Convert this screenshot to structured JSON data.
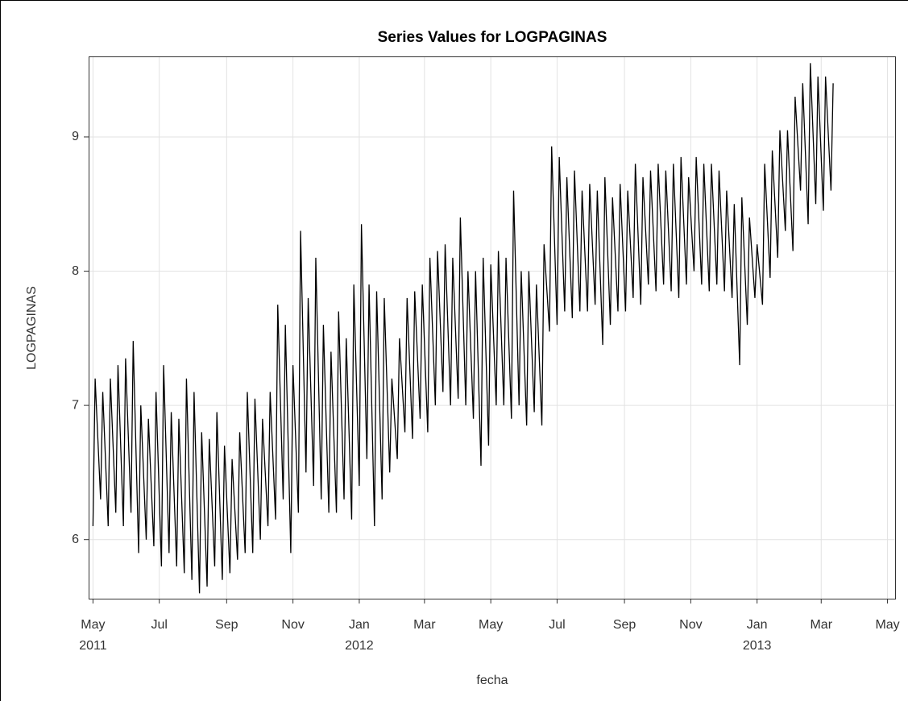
{
  "chart_data": {
    "type": "line",
    "title": "Series Values for LOGPAGINAS",
    "x_label": "fecha",
    "y_label": "LOGPAGINAS",
    "x": [
      "2011-05-01",
      "2011-05-03",
      "2011-05-08",
      "2011-05-10",
      "2011-05-15",
      "2011-05-17",
      "2011-05-22",
      "2011-05-24",
      "2011-05-29",
      "2011-05-31",
      "2011-06-05",
      "2011-06-07",
      "2011-06-12",
      "2011-06-14",
      "2011-06-19",
      "2011-06-21",
      "2011-06-26",
      "2011-06-28",
      "2011-07-03",
      "2011-07-05",
      "2011-07-10",
      "2011-07-12",
      "2011-07-17",
      "2011-07-19",
      "2011-07-24",
      "2011-07-26",
      "2011-07-31",
      "2011-08-02",
      "2011-08-07",
      "2011-08-09",
      "2011-08-14",
      "2011-08-16",
      "2011-08-21",
      "2011-08-23",
      "2011-08-28",
      "2011-08-30",
      "2011-09-04",
      "2011-09-06",
      "2011-09-11",
      "2011-09-13",
      "2011-09-18",
      "2011-09-20",
      "2011-09-25",
      "2011-09-27",
      "2011-10-02",
      "2011-10-04",
      "2011-10-09",
      "2011-10-11",
      "2011-10-16",
      "2011-10-18",
      "2011-10-23",
      "2011-10-25",
      "2011-10-30",
      "2011-11-01",
      "2011-11-06",
      "2011-11-08",
      "2011-11-13",
      "2011-11-15",
      "2011-11-20",
      "2011-11-22",
      "2011-11-27",
      "2011-11-29",
      "2011-12-04",
      "2011-12-06",
      "2011-12-11",
      "2011-12-13",
      "2011-12-18",
      "2011-12-20",
      "2011-12-25",
      "2011-12-27",
      "2012-01-01",
      "2012-01-03",
      "2012-01-08",
      "2012-01-10",
      "2012-01-15",
      "2012-01-17",
      "2012-01-22",
      "2012-01-24",
      "2012-01-29",
      "2012-01-31",
      "2012-02-05",
      "2012-02-07",
      "2012-02-12",
      "2012-02-14",
      "2012-02-19",
      "2012-02-21",
      "2012-02-26",
      "2012-02-28",
      "2012-03-04",
      "2012-03-06",
      "2012-03-11",
      "2012-03-13",
      "2012-03-18",
      "2012-03-20",
      "2012-03-25",
      "2012-03-27",
      "2012-04-01",
      "2012-04-03",
      "2012-04-08",
      "2012-04-10",
      "2012-04-15",
      "2012-04-17",
      "2012-04-22",
      "2012-04-24",
      "2012-04-29",
      "2012-05-01",
      "2012-05-06",
      "2012-05-08",
      "2012-05-13",
      "2012-05-15",
      "2012-05-20",
      "2012-05-22",
      "2012-05-27",
      "2012-05-29",
      "2012-06-03",
      "2012-06-05",
      "2012-06-10",
      "2012-06-12",
      "2012-06-17",
      "2012-06-19",
      "2012-06-24",
      "2012-06-26",
      "2012-07-01",
      "2012-07-03",
      "2012-07-08",
      "2012-07-10",
      "2012-07-15",
      "2012-07-17",
      "2012-07-22",
      "2012-07-24",
      "2012-07-29",
      "2012-07-31",
      "2012-08-05",
      "2012-08-07",
      "2012-08-12",
      "2012-08-14",
      "2012-08-19",
      "2012-08-21",
      "2012-08-26",
      "2012-08-28",
      "2012-09-02",
      "2012-09-04",
      "2012-09-09",
      "2012-09-11",
      "2012-09-16",
      "2012-09-18",
      "2012-09-23",
      "2012-09-25",
      "2012-09-30",
      "2012-10-02",
      "2012-10-07",
      "2012-10-09",
      "2012-10-14",
      "2012-10-16",
      "2012-10-21",
      "2012-10-23",
      "2012-10-28",
      "2012-10-30",
      "2012-11-04",
      "2012-11-06",
      "2012-11-11",
      "2012-11-13",
      "2012-11-18",
      "2012-11-20",
      "2012-11-25",
      "2012-11-27",
      "2012-12-02",
      "2012-12-04",
      "2012-12-09",
      "2012-12-11",
      "2012-12-16",
      "2012-12-18",
      "2012-12-23",
      "2012-12-25",
      "2012-12-30",
      "2013-01-01",
      "2013-01-06",
      "2013-01-08",
      "2013-01-13",
      "2013-01-15",
      "2013-01-20",
      "2013-01-22",
      "2013-01-27",
      "2013-01-29",
      "2013-02-03",
      "2013-02-05",
      "2013-02-10",
      "2013-02-12",
      "2013-02-17",
      "2013-02-19",
      "2013-02-24",
      "2013-02-26",
      "2013-03-03",
      "2013-03-05",
      "2013-03-10",
      "2013-03-12"
    ],
    "series": [
      {
        "name": "LOGPAGINAS",
        "color": "#000000",
        "values": [
          6.1,
          7.2,
          6.3,
          7.1,
          6.1,
          7.2,
          6.2,
          7.3,
          6.1,
          7.35,
          6.2,
          7.48,
          5.9,
          7.0,
          6.0,
          6.9,
          5.95,
          7.1,
          5.8,
          7.3,
          5.9,
          6.95,
          5.8,
          6.9,
          5.75,
          7.2,
          5.7,
          7.1,
          5.6,
          6.8,
          5.65,
          6.75,
          5.8,
          6.95,
          5.7,
          6.7,
          5.75,
          6.6,
          5.85,
          6.8,
          5.9,
          7.1,
          5.9,
          7.05,
          6.0,
          6.9,
          6.1,
          7.1,
          6.15,
          7.75,
          6.3,
          7.6,
          5.9,
          7.3,
          6.2,
          8.3,
          6.5,
          7.8,
          6.4,
          8.1,
          6.3,
          7.6,
          6.2,
          7.4,
          6.2,
          7.7,
          6.3,
          7.5,
          6.15,
          7.9,
          6.4,
          8.35,
          6.6,
          7.9,
          6.1,
          7.85,
          6.3,
          7.8,
          6.5,
          7.2,
          6.6,
          7.5,
          6.8,
          7.8,
          6.75,
          7.85,
          6.9,
          7.9,
          6.8,
          8.1,
          7.0,
          8.15,
          7.1,
          8.2,
          7.0,
          8.1,
          7.05,
          8.4,
          7.0,
          8.0,
          6.9,
          8.0,
          6.55,
          8.1,
          6.7,
          8.05,
          7.0,
          8.15,
          7.0,
          8.1,
          6.9,
          8.6,
          7.0,
          8.0,
          6.85,
          8.0,
          6.95,
          7.9,
          6.85,
          8.2,
          7.55,
          8.93,
          7.6,
          8.85,
          7.7,
          8.7,
          7.65,
          8.75,
          7.7,
          8.6,
          7.7,
          8.65,
          7.75,
          8.6,
          7.45,
          8.7,
          7.6,
          8.55,
          7.7,
          8.65,
          7.7,
          8.6,
          7.8,
          8.8,
          7.75,
          8.7,
          7.9,
          8.75,
          7.85,
          8.8,
          7.9,
          8.75,
          7.85,
          8.8,
          7.8,
          8.85,
          7.9,
          8.7,
          8.0,
          8.85,
          7.9,
          8.8,
          7.85,
          8.8,
          7.9,
          8.75,
          7.85,
          8.6,
          7.8,
          8.5,
          7.3,
          8.55,
          7.6,
          8.4,
          7.8,
          8.2,
          7.75,
          8.8,
          7.95,
          8.9,
          8.1,
          9.05,
          8.3,
          9.05,
          8.15,
          9.3,
          8.6,
          9.4,
          8.35,
          9.55,
          8.5,
          9.45,
          8.45,
          9.45,
          8.6,
          9.4
        ]
      }
    ],
    "xlim": [
      "2011-04-27",
      "2013-05-08"
    ],
    "xticks": [
      {
        "value": "2011-05-01",
        "label": "May"
      },
      {
        "value": "2011-07-01",
        "label": "Jul"
      },
      {
        "value": "2011-09-01",
        "label": "Sep"
      },
      {
        "value": "2011-11-01",
        "label": "Nov"
      },
      {
        "value": "2012-01-01",
        "label": "Jan"
      },
      {
        "value": "2012-03-01",
        "label": "Mar"
      },
      {
        "value": "2012-05-01",
        "label": "May"
      },
      {
        "value": "2012-07-01",
        "label": "Jul"
      },
      {
        "value": "2012-09-01",
        "label": "Sep"
      },
      {
        "value": "2012-11-01",
        "label": "Nov"
      },
      {
        "value": "2013-01-01",
        "label": "Jan"
      },
      {
        "value": "2013-03-01",
        "label": "Mar"
      },
      {
        "value": "2013-05-01",
        "label": "May"
      }
    ],
    "x_year_labels": [
      {
        "value": "2011-05-01",
        "label": "2011"
      },
      {
        "value": "2012-01-01",
        "label": "2012"
      },
      {
        "value": "2013-01-01",
        "label": "2013"
      }
    ],
    "ylim": [
      5.56,
      9.6
    ],
    "yticks": [
      6,
      7,
      8,
      9
    ],
    "grid": true
  }
}
